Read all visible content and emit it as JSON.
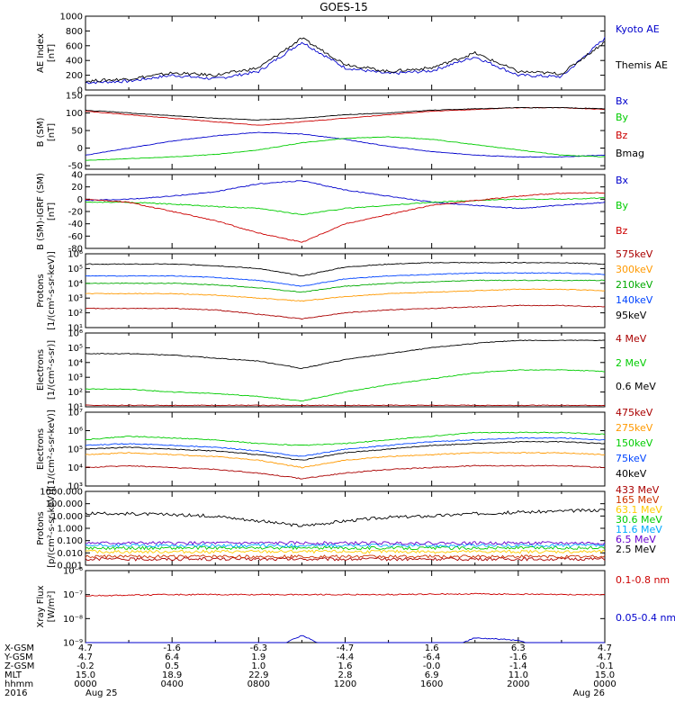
{
  "title": "GOES-15",
  "panels": [
    {
      "id": "ae",
      "ylabel": "AE Index",
      "unit": "[nT]",
      "ylim": [
        0,
        1000
      ],
      "log": false,
      "ticks": [
        "0",
        "200",
        "400",
        "600",
        "800",
        "1000"
      ],
      "tick_values": [
        0,
        200,
        400,
        600,
        800,
        1000
      ],
      "legend": [
        {
          "name": "Kyoto AE",
          "color": "#0000cc"
        },
        {
          "name": "Themis AE",
          "color": "#000000"
        }
      ]
    },
    {
      "id": "bsm",
      "ylabel": "B (SM)",
      "unit": "[nT]",
      "ylim": [
        -60,
        150
      ],
      "log": false,
      "ticks": [
        "-50",
        "0",
        "50",
        "100",
        "150"
      ],
      "tick_values": [
        -50,
        0,
        50,
        100,
        150
      ],
      "legend": [
        {
          "name": "Bx",
          "color": "#0000cc"
        },
        {
          "name": "By",
          "color": "#00cc00"
        },
        {
          "name": "Bz",
          "color": "#cc0000"
        },
        {
          "name": "Bmag",
          "color": "#000000"
        }
      ]
    },
    {
      "id": "bigrf",
      "ylabel": "B (SM)-IGRF (SM)",
      "unit": "[nT]",
      "ylim": [
        -80,
        40
      ],
      "log": false,
      "ticks": [
        "-80",
        "-60",
        "-40",
        "-20",
        "0",
        "20",
        "40"
      ],
      "tick_values": [
        -80,
        -60,
        -40,
        -20,
        0,
        20,
        40
      ],
      "legend": [
        {
          "name": "Bx",
          "color": "#0000cc"
        },
        {
          "name": "By",
          "color": "#00cc00"
        },
        {
          "name": "Bz",
          "color": "#cc0000"
        }
      ]
    },
    {
      "id": "protons_kev",
      "ylabel": "Protons",
      "unit": "[1/(cm²-s-sr-keV)]",
      "ylim": [
        10,
        1000000
      ],
      "log": true,
      "ticks": [
        "10¹",
        "10²",
        "10³",
        "10⁴",
        "10⁵",
        "10⁶"
      ],
      "tick_values": [
        1,
        2,
        3,
        4,
        5,
        6
      ],
      "legend": [
        {
          "name": "575keV",
          "color": "#aa0000"
        },
        {
          "name": "300keV",
          "color": "#ff9900"
        },
        {
          "name": "210keV",
          "color": "#00aa00"
        },
        {
          "name": "140keV",
          "color": "#0044ff"
        },
        {
          "name": "95keV",
          "color": "#000000"
        }
      ]
    },
    {
      "id": "electrons_mev",
      "ylabel": "Electrons",
      "unit": "[1/(cm²-s-sr)]",
      "ylim": [
        10,
        1000000
      ],
      "log": true,
      "ticks": [
        "10¹",
        "10²",
        "10³",
        "10⁴",
        "10⁵",
        "10⁶"
      ],
      "tick_values": [
        1,
        2,
        3,
        4,
        5,
        6
      ],
      "legend": [
        {
          "name": "4 MeV",
          "color": "#aa0000"
        },
        {
          "name": "2 MeV",
          "color": "#00cc00"
        },
        {
          "name": "0.6 MeV",
          "color": "#000000"
        }
      ]
    },
    {
      "id": "electrons_kev",
      "ylabel": "Electrons",
      "unit": "[1/(cm²-s-sr-keV)]",
      "ylim": [
        1000,
        10000000
      ],
      "log": true,
      "ticks": [
        "10³",
        "10⁴",
        "10⁵",
        "10⁶",
        "10⁷"
      ],
      "tick_values": [
        3,
        4,
        5,
        6,
        7
      ],
      "legend": [
        {
          "name": "475keV",
          "color": "#aa0000"
        },
        {
          "name": "275keV",
          "color": "#ff9900"
        },
        {
          "name": "150keV",
          "color": "#00cc00"
        },
        {
          "name": "75keV",
          "color": "#0044ff"
        },
        {
          "name": "40keV",
          "color": "#000000"
        }
      ]
    },
    {
      "id": "protons_mev",
      "ylabel": "Protons",
      "unit": "[p/(cm²-s-sr-keV)]",
      "ylim": [
        0.001,
        1000
      ],
      "log": true,
      "ticks": [
        "0.001",
        "0.010",
        "0.100",
        "1.000",
        "10.000",
        "100.000",
        "1000.000"
      ],
      "tick_values": [
        -3,
        -2,
        -1,
        0,
        1,
        2,
        3
      ],
      "legend": [
        {
          "name": "433 MeV",
          "color": "#aa0000"
        },
        {
          "name": "165 MeV",
          "color": "#cc3300"
        },
        {
          "name": "63.1 MeV",
          "color": "#ffcc00"
        },
        {
          "name": "30.6 MeV",
          "color": "#00cc00"
        },
        {
          "name": "11.6 MeV",
          "color": "#00aaff"
        },
        {
          "name": "6.5 MeV",
          "color": "#6600cc"
        },
        {
          "name": "2.5 MeV",
          "color": "#000000"
        }
      ]
    },
    {
      "id": "xray",
      "ylabel": "Xray Flux",
      "unit": "[W/m²]",
      "ylim": [
        1e-09,
        1e-06
      ],
      "log": true,
      "ticks": [
        "10⁻⁹",
        "10⁻⁸",
        "10⁻⁷",
        "10⁻⁶"
      ],
      "tick_values": [
        -9,
        -8,
        -7,
        -6
      ],
      "legend": [
        {
          "name": "0.1-0.8 nm",
          "color": "#cc0000"
        },
        {
          "name": "0.05-0.4 nm",
          "color": "#0000cc"
        }
      ]
    }
  ],
  "ephemeris": {
    "labels": [
      "X-GSM",
      "Y-GSM",
      "Z-GSM",
      "MLT",
      "hhmm",
      "2016"
    ],
    "columns": [
      [
        "4.7",
        "4.7",
        "-0.2",
        "15.0",
        "0000",
        "Aug 25"
      ],
      [
        "-1.6",
        "6.4",
        "0.5",
        "18.9",
        "0400",
        ""
      ],
      [
        "-6.3",
        "1.9",
        "1.0",
        "22.9",
        "0800",
        ""
      ],
      [
        "-4.7",
        "-4.4",
        "1.6",
        "2.8",
        "1200",
        ""
      ],
      [
        "1.6",
        "-6.4",
        "-0.0",
        "6.9",
        "1600",
        ""
      ],
      [
        "6.3",
        "-1.6",
        "-1.4",
        "11.0",
        "2000",
        ""
      ],
      [
        "4.7",
        "4.7",
        "-0.1",
        "15.0",
        "0000",
        "Aug 26"
      ]
    ]
  },
  "chart_data": {
    "type": "line",
    "title": "GOES-15",
    "x_hours": [
      0,
      2,
      4,
      6,
      8,
      10,
      12,
      14,
      16,
      18,
      20,
      22,
      24
    ],
    "x_tick_labels": [
      "0000",
      "0400",
      "0800",
      "1200",
      "1600",
      "2000",
      "0000"
    ],
    "series": [
      {
        "panel": "ae",
        "name": "Kyoto AE",
        "values": [
          100,
          120,
          200,
          150,
          250,
          650,
          300,
          220,
          260,
          450,
          200,
          180,
          700
        ]
      },
      {
        "panel": "ae",
        "name": "Themis AE",
        "values": [
          120,
          150,
          230,
          200,
          300,
          700,
          350,
          250,
          300,
          500,
          250,
          220,
          650
        ]
      },
      {
        "panel": "bsm",
        "name": "Bx",
        "values": [
          -20,
          0,
          20,
          35,
          45,
          40,
          25,
          5,
          -10,
          -20,
          -25,
          -25,
          -20
        ]
      },
      {
        "panel": "bsm",
        "name": "By",
        "values": [
          -35,
          -30,
          -25,
          -18,
          -5,
          15,
          28,
          32,
          25,
          10,
          -5,
          -20,
          -25
        ]
      },
      {
        "panel": "bsm",
        "name": "Bz",
        "values": [
          105,
          95,
          85,
          75,
          65,
          75,
          85,
          95,
          105,
          110,
          115,
          115,
          110
        ]
      },
      {
        "panel": "bsm",
        "name": "Bmag",
        "values": [
          108,
          100,
          92,
          85,
          80,
          85,
          95,
          100,
          108,
          112,
          115,
          115,
          112
        ]
      },
      {
        "panel": "bigrf",
        "name": "Bx",
        "values": [
          -2,
          0,
          5,
          12,
          25,
          30,
          15,
          5,
          -5,
          -10,
          -15,
          -10,
          -5
        ]
      },
      {
        "panel": "bigrf",
        "name": "By",
        "values": [
          -5,
          -5,
          -8,
          -12,
          -15,
          -25,
          -15,
          -10,
          -5,
          -2,
          0,
          0,
          2
        ]
      },
      {
        "panel": "bigrf",
        "name": "Bz",
        "values": [
          0,
          -5,
          -20,
          -35,
          -55,
          -70,
          -40,
          -25,
          -10,
          -2,
          5,
          10,
          10
        ]
      },
      {
        "panel": "protons_kev",
        "name": "575keV",
        "values": [
          2.3,
          2.3,
          2.3,
          2.2,
          1.9,
          1.6,
          2.0,
          2.2,
          2.3,
          2.4,
          2.5,
          2.5,
          2.4
        ]
      },
      {
        "panel": "protons_kev",
        "name": "300keV",
        "values": [
          3.3,
          3.3,
          3.3,
          3.2,
          3.0,
          2.8,
          3.1,
          3.3,
          3.4,
          3.5,
          3.6,
          3.6,
          3.5
        ]
      },
      {
        "panel": "protons_kev",
        "name": "210keV",
        "values": [
          4.0,
          4.0,
          4.0,
          3.9,
          3.7,
          3.4,
          3.8,
          4.0,
          4.1,
          4.2,
          4.2,
          4.2,
          4.2
        ]
      },
      {
        "panel": "protons_kev",
        "name": "140keV",
        "values": [
          4.5,
          4.5,
          4.5,
          4.4,
          4.2,
          3.8,
          4.3,
          4.5,
          4.6,
          4.7,
          4.7,
          4.7,
          4.6
        ]
      },
      {
        "panel": "protons_kev",
        "name": "95keV",
        "values": [
          5.3,
          5.3,
          5.3,
          5.2,
          5.0,
          4.5,
          5.1,
          5.3,
          5.4,
          5.4,
          5.4,
          5.4,
          5.3
        ]
      },
      {
        "panel": "electrons_mev",
        "name": "4 MeV",
        "values": [
          1.1,
          1.1,
          1.1,
          1.1,
          1.1,
          1.1,
          1.1,
          1.1,
          1.1,
          1.1,
          1.1,
          1.1,
          1.1
        ]
      },
      {
        "panel": "electrons_mev",
        "name": "2 MeV",
        "values": [
          2.2,
          2.2,
          2.0,
          1.9,
          1.7,
          1.4,
          2.0,
          2.5,
          2.9,
          3.3,
          3.5,
          3.5,
          3.4
        ]
      },
      {
        "panel": "electrons_mev",
        "name": "0.6 MeV",
        "values": [
          4.6,
          4.6,
          4.5,
          4.3,
          4.1,
          3.6,
          4.2,
          4.6,
          5.0,
          5.3,
          5.5,
          5.5,
          5.5
        ]
      },
      {
        "panel": "electrons_kev",
        "name": "475keV",
        "values": [
          4.0,
          4.1,
          4.0,
          3.9,
          3.7,
          3.4,
          3.7,
          3.9,
          4.0,
          4.1,
          4.1,
          4.1,
          4.0
        ]
      },
      {
        "panel": "electrons_kev",
        "name": "275keV",
        "values": [
          4.7,
          4.8,
          4.7,
          4.6,
          4.4,
          4.0,
          4.4,
          4.6,
          4.7,
          4.8,
          4.8,
          4.8,
          4.7
        ]
      },
      {
        "panel": "electrons_kev",
        "name": "150keV",
        "values": [
          5.5,
          5.7,
          5.6,
          5.5,
          5.3,
          5.2,
          5.3,
          5.5,
          5.7,
          5.9,
          5.9,
          5.9,
          5.8
        ]
      },
      {
        "panel": "electrons_kev",
        "name": "75keV",
        "values": [
          5.2,
          5.3,
          5.2,
          5.1,
          4.9,
          4.6,
          5.0,
          5.2,
          5.4,
          5.5,
          5.6,
          5.6,
          5.5
        ]
      },
      {
        "panel": "electrons_kev",
        "name": "40keV",
        "values": [
          5.0,
          5.1,
          5.0,
          4.9,
          4.7,
          4.4,
          4.8,
          5.0,
          5.2,
          5.3,
          5.4,
          5.4,
          5.3
        ]
      },
      {
        "panel": "protons_mev",
        "name": "433 MeV",
        "values": [
          -2.5,
          -2.5,
          -2.5,
          -2.5,
          -2.5,
          -2.5,
          -2.5,
          -2.5,
          -2.5,
          -2.5,
          -2.5,
          -2.5,
          -2.5
        ]
      },
      {
        "panel": "protons_mev",
        "name": "165 MeV",
        "values": [
          -2.3,
          -2.3,
          -2.3,
          -2.3,
          -2.3,
          -2.3,
          -2.3,
          -2.3,
          -2.3,
          -2.3,
          -2.3,
          -2.3,
          -2.3
        ]
      },
      {
        "panel": "protons_mev",
        "name": "63.1 MeV",
        "values": [
          -1.9,
          -1.9,
          -1.9,
          -1.9,
          -1.9,
          -1.9,
          -1.9,
          -1.9,
          -1.9,
          -1.9,
          -1.9,
          -1.9,
          -1.9
        ]
      },
      {
        "panel": "protons_mev",
        "name": "30.6 MeV",
        "values": [
          -1.6,
          -1.6,
          -1.6,
          -1.6,
          -1.6,
          -1.6,
          -1.6,
          -1.6,
          -1.6,
          -1.6,
          -1.6,
          -1.6,
          -1.6
        ]
      },
      {
        "panel": "protons_mev",
        "name": "11.6 MeV",
        "values": [
          -1.4,
          -1.4,
          -1.4,
          -1.4,
          -1.4,
          -1.4,
          -1.4,
          -1.4,
          -1.4,
          -1.4,
          -1.4,
          -1.4,
          -1.4
        ]
      },
      {
        "panel": "protons_mev",
        "name": "6.5 MeV",
        "values": [
          -1.2,
          -1.2,
          -1.2,
          -1.2,
          -1.2,
          -1.2,
          -1.2,
          -1.2,
          -1.2,
          -1.2,
          -1.2,
          -1.2,
          -1.2
        ]
      },
      {
        "panel": "protons_mev",
        "name": "2.5 MeV",
        "values": [
          1.2,
          1.2,
          1.1,
          1.0,
          0.6,
          0.2,
          0.6,
          0.9,
          1.0,
          1.2,
          1.3,
          1.4,
          1.5
        ]
      },
      {
        "panel": "xray",
        "name": "0.1-0.8 nm",
        "values": [
          -7.05,
          -7.02,
          -7.0,
          -7.0,
          -7.0,
          -7.0,
          -7.0,
          -7.0,
          -6.98,
          -6.97,
          -6.98,
          -7.0,
          -7.0
        ]
      },
      {
        "panel": "xray",
        "name": "0.05-0.4 nm",
        "values": [
          -9.5,
          -9.5,
          -9.5,
          -9.5,
          -9.5,
          -8.7,
          -9.5,
          -9.5,
          -9.5,
          -8.8,
          -8.9,
          -9.5,
          -9.5
        ]
      }
    ]
  }
}
